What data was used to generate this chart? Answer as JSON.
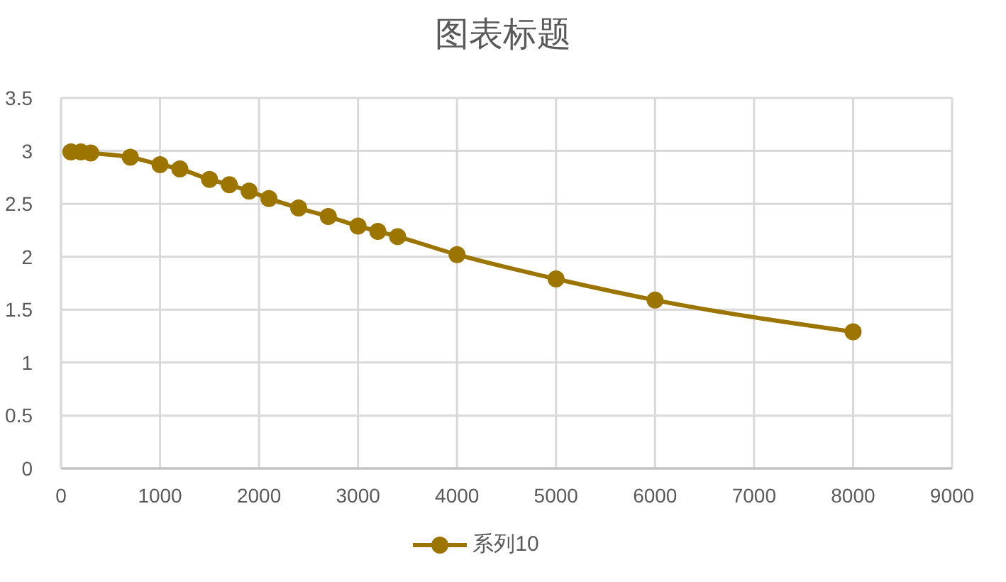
{
  "chart_data": {
    "type": "line",
    "title": "图表标题",
    "x": [
      100,
      200,
      300,
      700,
      1000,
      1200,
      1500,
      1700,
      1900,
      2100,
      2400,
      2700,
      3000,
      3200,
      3400,
      4000,
      5000,
      6000,
      8000
    ],
    "series": [
      {
        "name": "系列10",
        "color": "#9c7500",
        "values": [
          2.99,
          2.99,
          2.98,
          2.94,
          2.87,
          2.83,
          2.73,
          2.68,
          2.62,
          2.55,
          2.46,
          2.38,
          2.29,
          2.24,
          2.19,
          2.02,
          1.79,
          1.59,
          1.29
        ]
      }
    ],
    "xlim": [
      0,
      9000
    ],
    "xticks": [
      0,
      1000,
      2000,
      3000,
      4000,
      5000,
      6000,
      7000,
      8000,
      9000
    ],
    "ylim": [
      0,
      3.5
    ],
    "yticks": [
      0,
      0.5,
      1,
      1.5,
      2,
      2.5,
      3,
      3.5
    ],
    "grid": true,
    "legend": "bottom",
    "marker": "circle",
    "line_style": "solid"
  }
}
